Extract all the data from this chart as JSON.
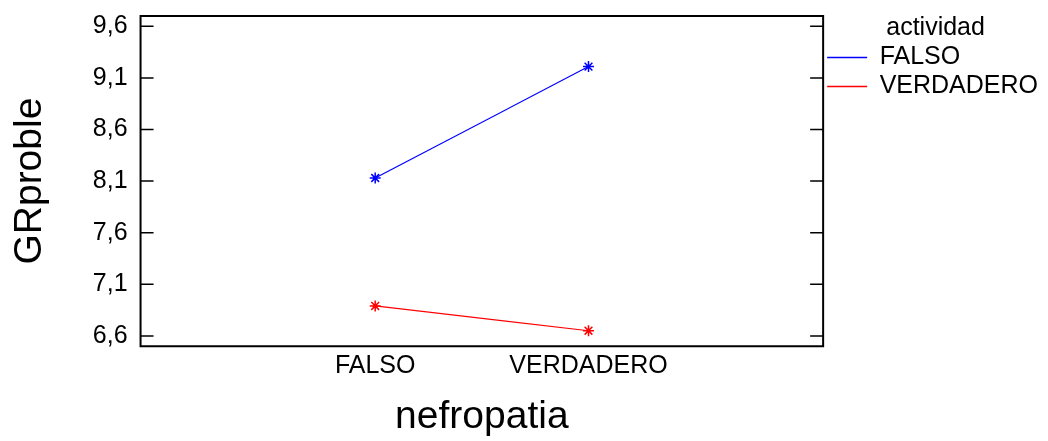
{
  "chart_data": {
    "type": "line",
    "categories": [
      "FALSO",
      "VERDADERO"
    ],
    "xlabel": "nefropatia",
    "ylabel": "GRproble",
    "legend_title": "actividad",
    "series": [
      {
        "name": "FALSO",
        "color": "#0000ff",
        "values": [
          8.13,
          9.21
        ]
      },
      {
        "name": "VERDADERO",
        "color": "#ff0000",
        "values": [
          6.89,
          6.65
        ]
      }
    ],
    "ylim": [
      6.5,
      9.7
    ],
    "yticks": [
      {
        "value": 6.6,
        "label": "6,6"
      },
      {
        "value": 7.1,
        "label": "7,1"
      },
      {
        "value": 7.6,
        "label": "7,6"
      },
      {
        "value": 8.1,
        "label": "8,1"
      },
      {
        "value": 8.6,
        "label": "8,6"
      },
      {
        "value": 9.1,
        "label": "9,1"
      },
      {
        "value": 9.6,
        "label": "9,6"
      }
    ],
    "grid": false,
    "legend": "top right",
    "marker": "cross"
  }
}
